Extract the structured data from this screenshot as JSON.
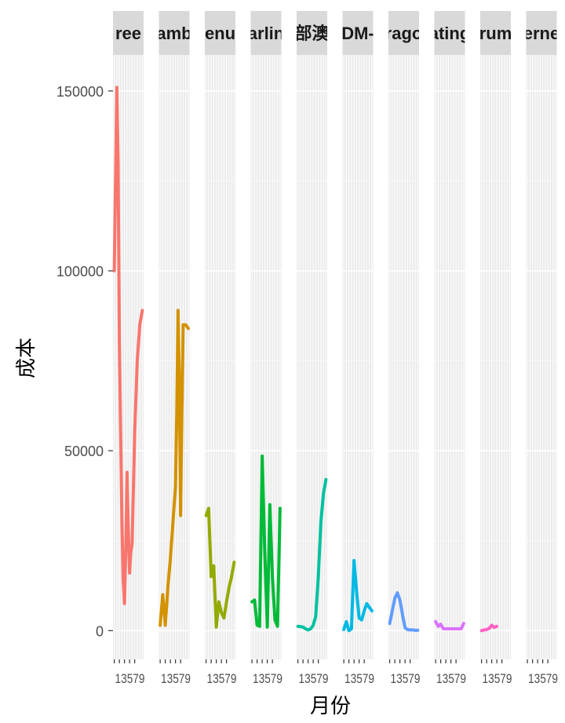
{
  "chart_data": {
    "type": "line",
    "xlabel": "月份",
    "ylabel": "成本",
    "yticks": [
      0,
      50000,
      100000,
      150000
    ],
    "ylim": [
      -8000,
      160000
    ],
    "xlim": [
      0.5,
      12.5
    ],
    "x_tick_label": "13579",
    "grid": true,
    "legend": "none",
    "panels": [
      {
        "label": "ree",
        "color": "#F8766D",
        "x": [
          1,
          1.5,
          2,
          2.5,
          3,
          3.5,
          4,
          4.5,
          5,
          5.5,
          6,
          6.5,
          7,
          7.5,
          8,
          9,
          10,
          11,
          12
        ],
        "y": [
          100000,
          125000,
          151000,
          130000,
          80000,
          55000,
          30000,
          14000,
          7500,
          22000,
          44000,
          28000,
          16000,
          22000,
          24000,
          55000,
          75000,
          85000,
          89000
        ]
      },
      {
        "label": "amb",
        "color": "#D39200",
        "x": [
          1,
          2,
          3,
          4,
          5,
          6,
          7,
          7.5,
          8,
          8.5,
          9,
          9.5,
          10,
          11,
          12
        ],
        "y": [
          1500,
          10000,
          1500,
          12000,
          20000,
          30000,
          40000,
          60000,
          89000,
          70000,
          32000,
          60000,
          85000,
          85000,
          84000
        ]
      },
      {
        "label": "enu",
        "color": "#93AA00",
        "x": [
          1,
          2,
          3,
          4,
          5,
          6,
          7,
          8,
          9,
          10,
          11,
          12
        ],
        "y": [
          32000,
          34000,
          15000,
          18000,
          1000,
          8000,
          5000,
          3500,
          8000,
          12000,
          15000,
          19000
        ]
      },
      {
        "label": "arlin",
        "color": "#00BA38",
        "x": [
          1,
          2,
          3,
          4,
          5,
          6,
          7,
          8,
          9,
          10,
          11,
          12
        ],
        "y": [
          8000,
          8500,
          1500,
          1200,
          48500,
          22000,
          1000,
          35000,
          15000,
          3000,
          1200,
          34000
        ]
      },
      {
        "label": "部澳",
        "color": "#00C19F",
        "x": [
          1,
          2,
          3,
          4,
          5,
          6,
          7,
          8,
          9,
          10,
          11,
          12
        ],
        "y": [
          1200,
          1100,
          1000,
          500,
          200,
          500,
          1500,
          4000,
          15000,
          30000,
          38000,
          42000
        ]
      },
      {
        "label": "DM-",
        "color": "#00B9E3",
        "x": [
          1,
          2,
          3,
          4,
          5,
          6,
          7,
          8,
          9,
          10,
          11,
          12
        ],
        "y": [
          300,
          2500,
          0,
          500,
          19500,
          11000,
          3500,
          3000,
          5500,
          7500,
          6500,
          5500
        ]
      },
      {
        "label": "rago",
        "color": "#619CFF",
        "x": [
          1,
          2,
          3,
          4,
          5,
          6,
          7,
          8,
          9,
          10,
          11,
          12
        ],
        "y": [
          2000,
          5500,
          9000,
          10500,
          8500,
          4500,
          800,
          300,
          200,
          200,
          100,
          100
        ]
      },
      {
        "label": "ating",
        "color": "#DB72FB",
        "x": [
          1,
          2,
          3,
          4,
          5,
          6,
          7,
          8,
          9,
          10,
          11,
          12
        ],
        "y": [
          2500,
          1200,
          1800,
          500,
          500,
          500,
          500,
          500,
          500,
          500,
          500,
          2000
        ]
      },
      {
        "label": "rum",
        "color": "#FF61C3",
        "x": [
          1,
          2,
          3,
          4,
          5,
          6,
          7
        ],
        "y": [
          0,
          200,
          300,
          600,
          1500,
          900,
          1200
        ]
      },
      {
        "label": "erne",
        "color": "#FF61C3",
        "x": [],
        "y": []
      }
    ]
  }
}
